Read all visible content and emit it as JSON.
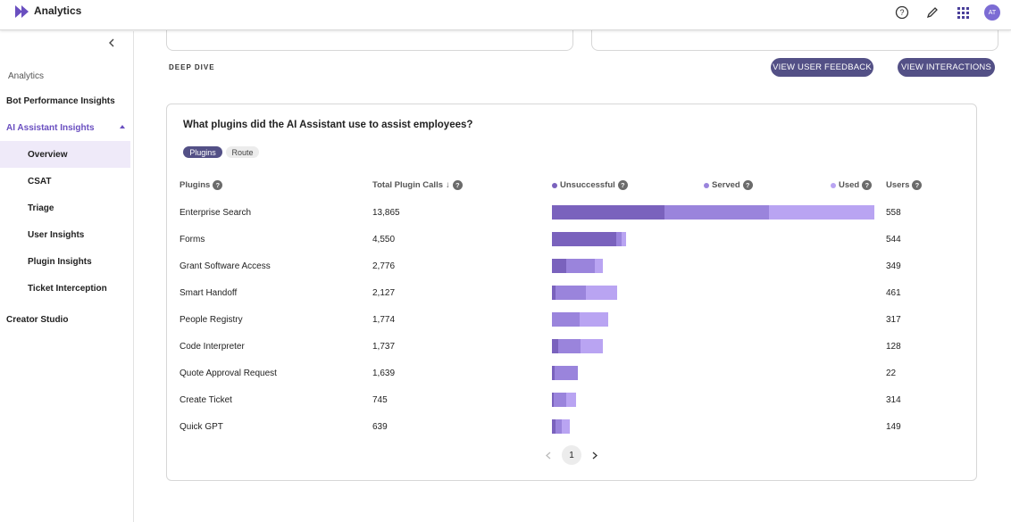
{
  "app": {
    "title": "Analytics",
    "user_initials": "AT"
  },
  "topbar_icons": [
    "help-icon",
    "edit-icon",
    "apps-grid-icon"
  ],
  "sidebar": {
    "section_label": "Analytics",
    "items": [
      {
        "label": "Bot Performance Insights"
      },
      {
        "label": "AI Assistant Insights"
      },
      {
        "label": "Overview"
      },
      {
        "label": "CSAT"
      },
      {
        "label": "Triage"
      },
      {
        "label": "User Insights"
      },
      {
        "label": "Plugin Insights"
      },
      {
        "label": "Ticket Interception"
      },
      {
        "label": "Creator Studio"
      }
    ]
  },
  "deep_dive": {
    "label": "DEEP DIVE",
    "view_feedback_label": "VIEW USER FEEDBACK",
    "view_interactions_label": "VIEW INTERACTIONS"
  },
  "panel": {
    "question": "What plugins did the AI Assistant use to assist employees?",
    "tabs": [
      "Plugins",
      "Route"
    ],
    "active_tab": "Plugins",
    "columns": {
      "plugins": "Plugins",
      "total_calls": "Total Plugin Calls",
      "sort_indicator": "↓",
      "unsuccessful": "Unsuccessful",
      "served": "Served",
      "used": "Used",
      "users": "Users"
    },
    "colors": {
      "unsuccessful": "#7a62bd",
      "served": "#9a84dc",
      "used": "#b9a4f2"
    },
    "rows": [
      {
        "name": "Enterprise Search",
        "total": "13,865",
        "users": "558"
      },
      {
        "name": "Forms",
        "total": "4,550",
        "users": "544"
      },
      {
        "name": "Grant Software Access",
        "total": "2,776",
        "users": "349"
      },
      {
        "name": "Smart Handoff",
        "total": "2,127",
        "users": "461"
      },
      {
        "name": "People Registry",
        "total": "1,774",
        "users": "317"
      },
      {
        "name": "Code Interpreter",
        "total": "1,737",
        "users": "128"
      },
      {
        "name": "Quote Approval Request",
        "total": "1,639",
        "users": "22"
      },
      {
        "name": "Create Ticket",
        "total": "745",
        "users": "314"
      },
      {
        "name": "Quick GPT",
        "total": "639",
        "users": "149"
      }
    ],
    "pagination": {
      "current_page": "1"
    }
  }
}
